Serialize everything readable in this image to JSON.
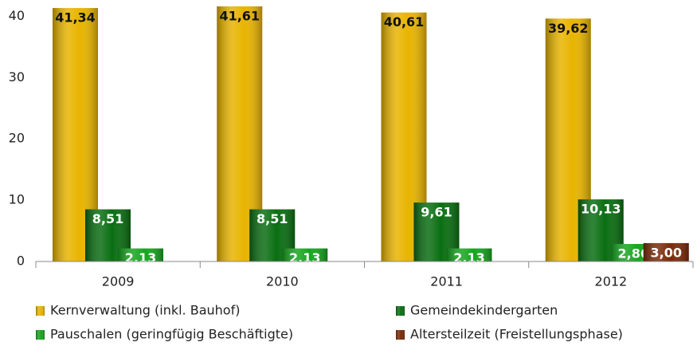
{
  "chart_data": {
    "type": "bar",
    "categories": [
      "2009",
      "2010",
      "2011",
      "2012"
    ],
    "series": [
      {
        "name": "Kernverwaltung (inkl. Bauhof)",
        "color": "#e8b400",
        "values": [
          41.34,
          41.61,
          40.61,
          39.62
        ],
        "value_labels": [
          "41,34",
          "41,61",
          "40,61",
          "39,62"
        ]
      },
      {
        "name": "Gemeindekindergarten",
        "color": "#0a6e12",
        "values": [
          8.51,
          8.51,
          9.61,
          10.13
        ],
        "value_labels": [
          "8,51",
          "8,51",
          "9,61",
          "10,13"
        ]
      },
      {
        "name": "Pauschalen (geringfügig Beschäftigte)",
        "color": "#16a51e",
        "values": [
          2.13,
          2.13,
          2.13,
          2.86
        ],
        "value_labels": [
          "2,13",
          "2,13",
          "2,13",
          "2,86"
        ]
      },
      {
        "name": "Altersteilzeit  (Freistellungsphase)",
        "color": "#7a2a08",
        "values": [
          null,
          null,
          null,
          3.0
        ],
        "value_labels": [
          null,
          null,
          null,
          "3,00"
        ]
      }
    ],
    "ylim": [
      0,
      42
    ],
    "yticks": [
      0,
      10,
      20,
      30,
      40
    ],
    "grid": false
  }
}
